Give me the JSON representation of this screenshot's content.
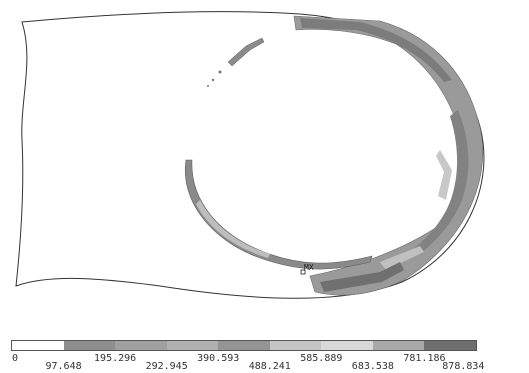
{
  "plot": {
    "mx_label": "MX"
  },
  "legend": {
    "colors": [
      "#ffffff",
      "#8e8e8e",
      "#a0a0a0",
      "#b0b0b0",
      "#949494",
      "#c4c4c4",
      "#d8d8d8",
      "#a8a8a8",
      "#6e6e6e"
    ],
    "ticks_top": [
      "0",
      "195.296",
      "390.593",
      "585.889",
      "781.186"
    ],
    "ticks_bottom": [
      "97.648",
      "292.945",
      "488.241",
      "683.538",
      "878.834"
    ]
  }
}
